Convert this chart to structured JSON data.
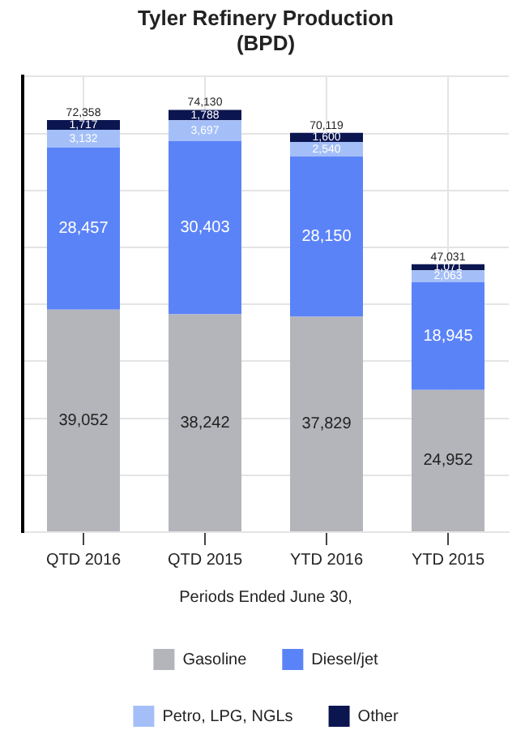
{
  "chart_data": {
    "type": "bar",
    "title": [
      "Tyler Refinery Production",
      "(BPD)"
    ],
    "xlabel": "Periods Ended June 30,",
    "categories": [
      "QTD 2016",
      "QTD 2015",
      "YTD 2016",
      "YTD 2015"
    ],
    "stacked": true,
    "series": [
      {
        "name": "Gasoline",
        "color": "#b4b5ba",
        "values": [
          39052,
          38242,
          37829,
          24952
        ],
        "value_labels": [
          "39,052",
          "38,242",
          "37,829",
          "24,952"
        ]
      },
      {
        "name": "Diesel/jet",
        "color": "#5b83f8",
        "values": [
          28457,
          30403,
          28150,
          18945
        ],
        "value_labels": [
          "28,457",
          "30,403",
          "28,150",
          "18,945"
        ]
      },
      {
        "name": "Petro, LPG, NGLs",
        "color": "#a4bff8",
        "values": [
          3132,
          3697,
          2540,
          2063
        ],
        "value_labels": [
          "3,132",
          "3,697",
          "2,540",
          "2,063"
        ]
      },
      {
        "name": "Other",
        "color": "#0b1650",
        "values": [
          1717,
          1788,
          1600,
          1071
        ],
        "value_labels": [
          "1,717",
          "1,788",
          "1,600",
          "1,071"
        ]
      }
    ],
    "totals": [
      "72,358",
      "74,130",
      "70,119",
      "47,031"
    ],
    "grid": true,
    "legend": "bottom",
    "tick_labels": "x"
  }
}
